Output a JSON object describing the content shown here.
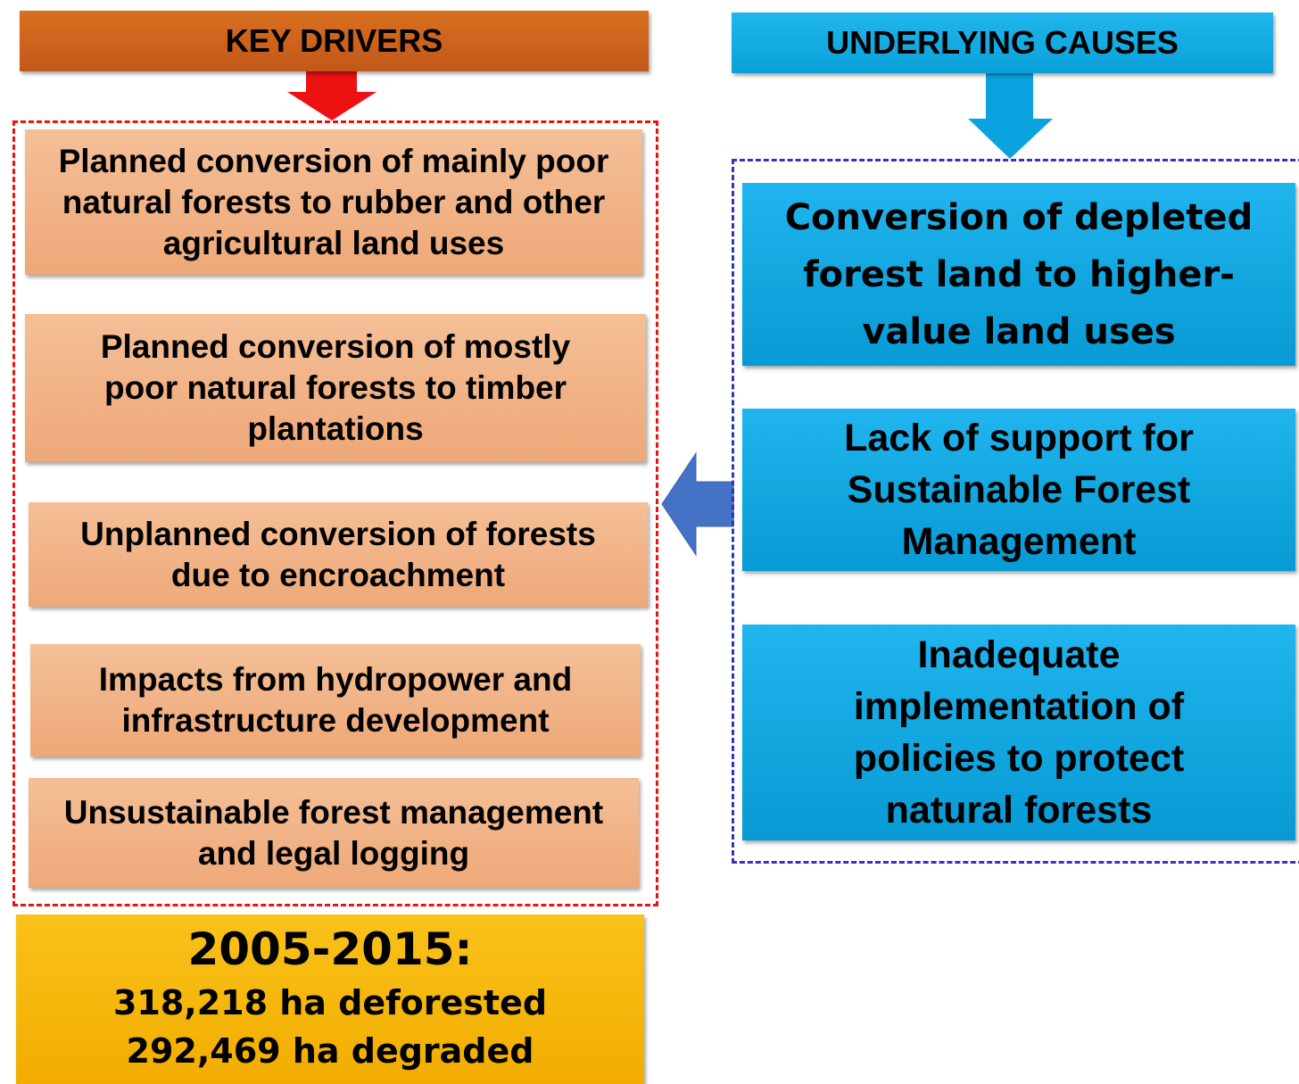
{
  "left": {
    "header": "KEY DRIVERS",
    "items": [
      "Planned conversion of mainly poor natural forests to rubber and other agricultural land uses",
      "Planned conversion of mostly poor natural forests to timber plantations",
      "Unplanned conversion of forests due to encroachment",
      "Impacts from hydropower and infrastructure development",
      "Unsustainable forest management and legal logging"
    ]
  },
  "right": {
    "header": "UNDERLYING CAUSES",
    "items": [
      "Conversion of depleted forest land to higher-value land uses",
      "Lack of support for Sustainable Forest Management",
      "Inadequate implementation of policies to protect natural forests"
    ]
  },
  "summary": {
    "period": "2005-2015:",
    "lines": [
      "318,218 ha deforested",
      "292,469 ha degraded"
    ]
  }
}
